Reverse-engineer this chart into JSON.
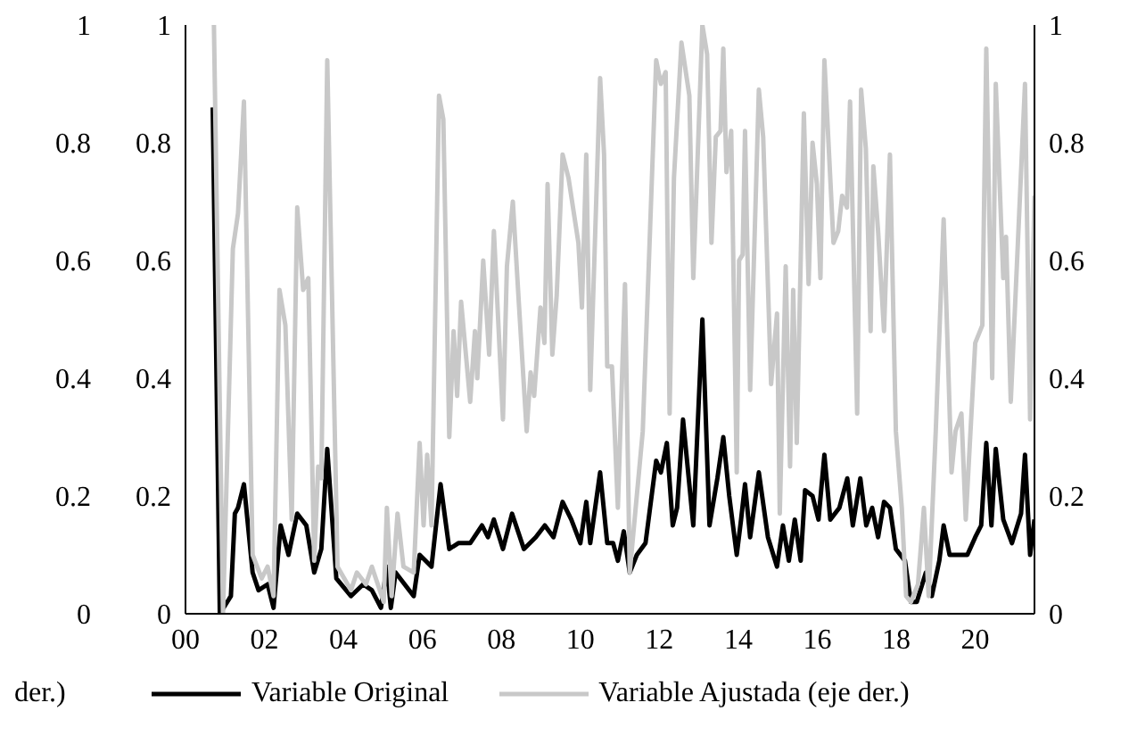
{
  "chart_data": {
    "type": "line",
    "xlim": [
      2000,
      2021.5
    ],
    "xticks": [
      {
        "value": 2000,
        "label": "00"
      },
      {
        "value": 2002,
        "label": "02"
      },
      {
        "value": 2004,
        "label": "04"
      },
      {
        "value": 2006,
        "label": "06"
      },
      {
        "value": 2008,
        "label": "08"
      },
      {
        "value": 2010,
        "label": "10"
      },
      {
        "value": 2012,
        "label": "12"
      },
      {
        "value": 2014,
        "label": "14"
      },
      {
        "value": 2016,
        "label": "16"
      },
      {
        "value": 2018,
        "label": "18"
      },
      {
        "value": 2020,
        "label": "20"
      }
    ],
    "ylim": [
      0,
      1
    ],
    "yticks": [
      0,
      0.2,
      0.4,
      0.6,
      0.8,
      1
    ],
    "y2lim": [
      0,
      1
    ],
    "y2ticks": [
      0,
      0.2,
      0.4,
      0.6,
      0.8,
      1
    ],
    "y3lim": [
      0,
      1
    ],
    "y3ticks": [
      0,
      0.2,
      0.4,
      0.6,
      0.8,
      1
    ],
    "legend": "bottom",
    "annotations": [
      "der.)"
    ],
    "series": [
      {
        "name": "Variable Original",
        "color": "#000000",
        "x": [
          2000.69,
          2000.87,
          2001.15,
          2001.25,
          2001.33,
          2001.48,
          2001.7,
          2001.85,
          2002.08,
          2002.23,
          2002.41,
          2002.61,
          2002.83,
          2003.06,
          2003.26,
          2003.44,
          2003.59,
          2003.82,
          2004.19,
          2004.5,
          2004.72,
          2004.95,
          2005.1,
          2005.2,
          2005.32,
          2005.78,
          2005.93,
          2006.23,
          2006.46,
          2006.68,
          2006.91,
          2007.21,
          2007.51,
          2007.66,
          2007.81,
          2008.04,
          2008.27,
          2008.57,
          2008.87,
          2009.1,
          2009.32,
          2009.55,
          2009.77,
          2010.0,
          2010.15,
          2010.25,
          2010.5,
          2010.68,
          2010.83,
          2010.95,
          2011.1,
          2011.25,
          2011.43,
          2011.65,
          2011.92,
          2012.04,
          2012.19,
          2012.34,
          2012.45,
          2012.6,
          2012.86,
          2013.09,
          2013.27,
          2013.47,
          2013.62,
          2013.77,
          2013.96,
          2014.07,
          2014.17,
          2014.3,
          2014.52,
          2014.75,
          2014.98,
          2015.13,
          2015.28,
          2015.43,
          2015.58,
          2015.69,
          2015.88,
          2016.03,
          2016.18,
          2016.33,
          2016.56,
          2016.76,
          2016.9,
          2017.09,
          2017.24,
          2017.39,
          2017.54,
          2017.69,
          2017.84,
          2017.99,
          2018.22,
          2018.37,
          2018.52,
          2018.75,
          2018.9,
          2019.09,
          2019.2,
          2019.35,
          2019.57,
          2019.8,
          2020.0,
          2020.15,
          2020.28,
          2020.41,
          2020.52,
          2020.71,
          2020.93,
          2021.16,
          2021.26,
          2021.39,
          2021.5
        ],
        "values": [
          0.86,
          0,
          0.03,
          0.17,
          0.18,
          0.22,
          0.07,
          0.04,
          0.05,
          0.01,
          0.15,
          0.1,
          0.17,
          0.15,
          0.07,
          0.11,
          0.28,
          0.06,
          0.03,
          0.05,
          0.04,
          0.01,
          0.08,
          0.01,
          0.07,
          0.03,
          0.1,
          0.08,
          0.22,
          0.11,
          0.12,
          0.12,
          0.15,
          0.13,
          0.16,
          0.11,
          0.17,
          0.11,
          0.13,
          0.15,
          0.13,
          0.19,
          0.16,
          0.12,
          0.19,
          0.12,
          0.24,
          0.12,
          0.12,
          0.09,
          0.14,
          0.07,
          0.1,
          0.12,
          0.26,
          0.24,
          0.29,
          0.15,
          0.18,
          0.33,
          0.15,
          0.5,
          0.15,
          0.23,
          0.3,
          0.2,
          0.1,
          0.16,
          0.22,
          0.13,
          0.24,
          0.13,
          0.08,
          0.15,
          0.09,
          0.16,
          0.09,
          0.21,
          0.2,
          0.16,
          0.27,
          0.16,
          0.18,
          0.23,
          0.15,
          0.23,
          0.15,
          0.18,
          0.13,
          0.19,
          0.18,
          0.11,
          0.09,
          0.02,
          0.02,
          0.07,
          0.03,
          0.09,
          0.15,
          0.1,
          0.1,
          0.1,
          0.13,
          0.15,
          0.29,
          0.15,
          0.28,
          0.16,
          0.12,
          0.17,
          0.27,
          0.1,
          0.16
        ]
      },
      {
        "name": "Variable Ajustada (eje der.)",
        "color": "#c8c8c8",
        "axis": "y2",
        "x": [
          2000.72,
          2000.95,
          2001.2,
          2001.33,
          2001.48,
          2001.7,
          2001.93,
          2002.08,
          2002.23,
          2002.38,
          2002.53,
          2002.69,
          2002.83,
          2002.98,
          2003.11,
          2003.26,
          2003.36,
          2003.44,
          2003.59,
          2003.85,
          2004.19,
          2004.34,
          2004.57,
          2004.72,
          2005.02,
          2005.1,
          2005.22,
          2005.37,
          2005.52,
          2005.78,
          2005.93,
          2006.03,
          2006.12,
          2006.23,
          2006.42,
          2006.53,
          2006.68,
          2006.79,
          2006.88,
          2006.98,
          2007.21,
          2007.33,
          2007.39,
          2007.54,
          2007.69,
          2007.81,
          2008.04,
          2008.14,
          2008.29,
          2008.44,
          2008.64,
          2008.74,
          2008.83,
          2008.99,
          2009.09,
          2009.17,
          2009.29,
          2009.4,
          2009.55,
          2009.7,
          2009.95,
          2010.04,
          2010.15,
          2010.25,
          2010.5,
          2010.6,
          2010.68,
          2010.8,
          2010.95,
          2011.13,
          2011.25,
          2011.58,
          2011.92,
          2012.04,
          2012.16,
          2012.26,
          2012.37,
          2012.56,
          2012.76,
          2012.86,
          2013.09,
          2013.21,
          2013.32,
          2013.43,
          2013.55,
          2013.62,
          2013.7,
          2013.82,
          2013.96,
          2014.02,
          2014.11,
          2014.17,
          2014.3,
          2014.52,
          2014.63,
          2014.83,
          2014.98,
          2015.05,
          2015.2,
          2015.31,
          2015.39,
          2015.48,
          2015.66,
          2015.78,
          2015.88,
          2015.99,
          2016.08,
          2016.18,
          2016.41,
          2016.53,
          2016.63,
          2016.75,
          2016.83,
          2017.01,
          2017.11,
          2017.23,
          2017.35,
          2017.42,
          2017.54,
          2017.69,
          2017.84,
          2017.99,
          2018.14,
          2018.25,
          2018.37,
          2018.55,
          2018.7,
          2018.82,
          2019.0,
          2019.2,
          2019.4,
          2019.5,
          2019.65,
          2019.76,
          2020.0,
          2020.18,
          2020.28,
          2020.43,
          2020.52,
          2020.71,
          2020.78,
          2020.9,
          2021.08,
          2021.26,
          2021.39,
          2021.5
        ],
        "values": [
          1,
          0,
          0.62,
          0.68,
          0.87,
          0.1,
          0.06,
          0.08,
          0.03,
          0.55,
          0.49,
          0.16,
          0.69,
          0.55,
          0.57,
          0.09,
          0.25,
          0.23,
          0.94,
          0.08,
          0.04,
          0.07,
          0.05,
          0.08,
          0.02,
          0.18,
          0.03,
          0.17,
          0.08,
          0.07,
          0.29,
          0.15,
          0.27,
          0.15,
          0.88,
          0.84,
          0.3,
          0.48,
          0.37,
          0.53,
          0.36,
          0.48,
          0.4,
          0.6,
          0.44,
          0.65,
          0.33,
          0.59,
          0.7,
          0.53,
          0.31,
          0.41,
          0.37,
          0.52,
          0.46,
          0.73,
          0.44,
          0.54,
          0.78,
          0.74,
          0.63,
          0.52,
          0.78,
          0.38,
          0.91,
          0.78,
          0.42,
          0.42,
          0.18,
          0.56,
          0.07,
          0.31,
          0.94,
          0.9,
          0.92,
          0.34,
          0.74,
          0.97,
          0.88,
          0.57,
          1,
          0.95,
          0.63,
          0.81,
          0.82,
          0.96,
          0.75,
          0.82,
          0.24,
          0.6,
          0.61,
          0.82,
          0.38,
          0.89,
          0.81,
          0.39,
          0.51,
          0.17,
          0.59,
          0.25,
          0.55,
          0.29,
          0.85,
          0.56,
          0.8,
          0.73,
          0.57,
          0.94,
          0.63,
          0.65,
          0.71,
          0.69,
          0.87,
          0.34,
          0.89,
          0.79,
          0.48,
          0.76,
          0.65,
          0.48,
          0.78,
          0.31,
          0.18,
          0.03,
          0.02,
          0.05,
          0.18,
          0.03,
          0.31,
          0.67,
          0.24,
          0.31,
          0.34,
          0.16,
          0.46,
          0.49,
          0.96,
          0.4,
          0.9,
          0.57,
          0.64,
          0.36,
          0.63,
          0.9,
          0.33,
          0.71
        ]
      }
    ]
  }
}
